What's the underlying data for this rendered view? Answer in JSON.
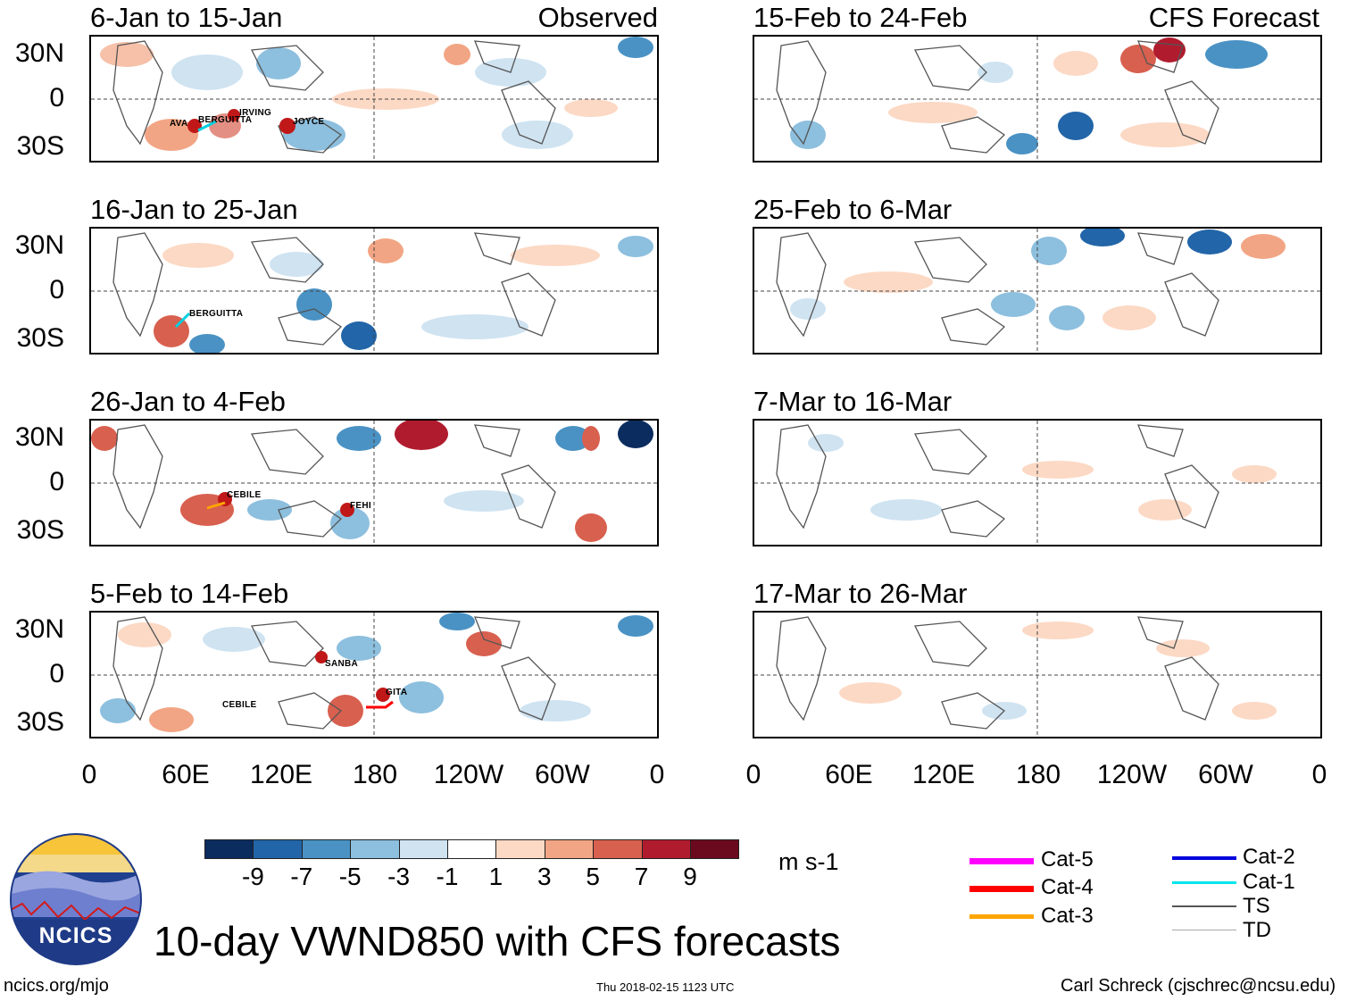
{
  "figure": {
    "main_title": "10-day VWND850 with CFS forecasts",
    "site": "ncics.org/mjo",
    "timestamp": "Thu 2018-02-15 1123 UTC",
    "credit": "Carl Schreck (cjschrec@ncsu.edu)",
    "logo_text": "NCICS"
  },
  "columns": {
    "left_tag": "Observed",
    "right_tag": "CFS Forecast"
  },
  "axes": {
    "lat_labels": [
      "30N",
      "0",
      "30S"
    ],
    "lon_labels": [
      "0",
      "60E",
      "120E",
      "180",
      "120W",
      "60W",
      "0"
    ]
  },
  "panels": {
    "left": [
      {
        "title": "6-Jan to 15-Jan",
        "storms": [
          "AVA",
          "BERGUITTA",
          "IRVING",
          "JOYCE"
        ]
      },
      {
        "title": "16-Jan to 25-Jan",
        "storms": [
          "BERGUITTA"
        ]
      },
      {
        "title": "26-Jan to 4-Feb",
        "storms": [
          "CEBILE",
          "FEHI"
        ]
      },
      {
        "title": "5-Feb to 14-Feb",
        "storms": [
          "SANBA",
          "CEBILE",
          "GITA"
        ]
      }
    ],
    "right": [
      {
        "title": "15-Feb to 24-Feb"
      },
      {
        "title": "25-Feb to 6-Mar"
      },
      {
        "title": "7-Mar to 16-Mar"
      },
      {
        "title": "17-Mar to 26-Mar"
      }
    ]
  },
  "colorbar": {
    "units": "m s-1",
    "ticks": [
      "-9",
      "-7",
      "-5",
      "-3",
      "-1",
      "1",
      "3",
      "5",
      "7",
      "9"
    ],
    "colors": [
      "#0b2c5e",
      "#2265a8",
      "#4a92c4",
      "#8dbfde",
      "#cfe3f1",
      "#ffffff",
      "#fcd9c5",
      "#f2a584",
      "#d8604f",
      "#b01c2e",
      "#6b0a1e"
    ]
  },
  "legend": {
    "items": [
      {
        "label": "Cat-5",
        "color": "#ff00ff"
      },
      {
        "label": "Cat-4",
        "color": "#ff0000"
      },
      {
        "label": "Cat-3",
        "color": "#ffa500"
      },
      {
        "label": "Cat-2",
        "color": "#0000dd"
      },
      {
        "label": "Cat-1",
        "color": "#00e5ee"
      },
      {
        "label": "TS",
        "color": "#555555"
      },
      {
        "label": "TD",
        "color": "#aaaaaa"
      }
    ]
  }
}
